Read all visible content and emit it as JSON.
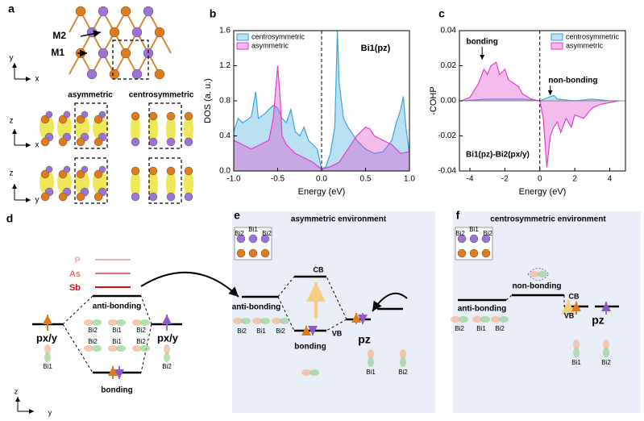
{
  "panels": {
    "a": {
      "letter": "a",
      "texts": [
        "M2",
        "M1",
        "y",
        "x",
        "asymmetric",
        "centrosymmetric",
        "z",
        "x",
        "z",
        "y"
      ]
    },
    "d": {
      "letter": "d",
      "texts": [
        "P",
        "As",
        "Sb",
        "anti-bonding",
        "px/y",
        "px/y",
        "Bi2",
        "Bi1",
        "Bi2",
        "Bi2",
        "Bi1",
        "Bi2",
        "bonding",
        "Bi1",
        "Bi2",
        "z",
        "y"
      ]
    },
    "e": {
      "letter": "e",
      "title": "asymmetric environment",
      "texts": [
        "Bi2",
        "Bi1",
        "Bi2",
        "CB",
        "VB",
        "anti-bonding",
        "bonding",
        "pz",
        "Bi2",
        "Bi1",
        "Bi2",
        "Bi1",
        "Bi2"
      ]
    },
    "f": {
      "letter": "f",
      "title": "centrosymmetric environment",
      "texts": [
        "Bi2",
        "Bi1",
        "Bi2",
        "non-bonding",
        "CB",
        "VB",
        "anti-bonding",
        "pz",
        "Bi2",
        "Bi1",
        "Bi2",
        "Bi1",
        "Bi2"
      ]
    }
  },
  "chart_data": [
    {
      "type": "area",
      "letter": "b",
      "annotations": [
        "Bi1(pz)"
      ],
      "xlabel": "Energy (eV)",
      "ylabel": "DOS (a. u.)",
      "xlim": [
        -1,
        1
      ],
      "ylim": [
        0,
        1.6
      ],
      "xticks": [
        {
          "value": -1,
          "label": "-1.0"
        },
        -0.5,
        {
          "value": 0,
          "label": "0.0"
        },
        0.5,
        {
          "value": 1,
          "label": "1.0"
        }
      ],
      "yticks": [
        {
          "value": 0,
          "label": "0.0"
        },
        0.4,
        0.8,
        1.2,
        1.6
      ],
      "vline": 0,
      "legend": "upper left",
      "series": [
        {
          "name": "centrosymmetric",
          "color": "#3aa6dd",
          "x": [
            -1,
            -0.95,
            -0.9,
            -0.85,
            -0.8,
            -0.75,
            -0.72,
            -0.65,
            -0.6,
            -0.55,
            -0.5,
            -0.45,
            -0.4,
            -0.35,
            -0.3,
            -0.25,
            -0.2,
            -0.15,
            -0.1,
            -0.05,
            0,
            0.05,
            0.1,
            0.15,
            0.18,
            0.2,
            0.25,
            0.3,
            0.4,
            0.5,
            0.6,
            0.7,
            0.8,
            0.85,
            0.9,
            0.93,
            0.96,
            1
          ],
          "values": [
            0.45,
            0.6,
            0.55,
            0.58,
            0.62,
            0.9,
            0.6,
            0.65,
            0.7,
            0.75,
            0.72,
            0.6,
            0.55,
            0.7,
            0.45,
            0.4,
            0.5,
            0.35,
            0.3,
            0.25,
            0.02,
            0.05,
            0.2,
            0.5,
            1.6,
            1.0,
            0.6,
            0.5,
            0.35,
            0.25,
            0.2,
            0.22,
            0.35,
            0.55,
            0.7,
            0.85,
            0.5,
            0.2
          ]
        },
        {
          "name": "asymmetric",
          "color": "#e040c8",
          "x": [
            -1,
            -0.9,
            -0.8,
            -0.7,
            -0.6,
            -0.55,
            -0.5,
            -0.47,
            -0.45,
            -0.4,
            -0.3,
            -0.2,
            -0.1,
            0,
            0.1,
            0.2,
            0.3,
            0.4,
            0.5,
            0.55,
            0.6,
            0.7,
            0.8,
            0.9,
            1
          ],
          "values": [
            0.35,
            0.3,
            0.25,
            0.3,
            0.35,
            0.6,
            1.2,
            0.8,
            0.4,
            0.3,
            0.2,
            0.15,
            0.1,
            0.02,
            0.05,
            0.1,
            0.25,
            0.4,
            0.5,
            0.48,
            0.4,
            0.35,
            0.3,
            0.2,
            0.22
          ]
        }
      ]
    },
    {
      "type": "area",
      "letter": "c",
      "annotations": [
        "bonding",
        "non-bonding",
        "Bi1(pz)-Bi2(px/y)"
      ],
      "xlabel": "Energy (eV)",
      "ylabel": "-COHP",
      "xlim": [
        -4.6,
        4.9
      ],
      "ylim": [
        -0.04,
        0.04
      ],
      "xticks": [
        -4,
        -2,
        0,
        2,
        4
      ],
      "yticks": [
        -0.04,
        -0.02,
        {
          "value": 0,
          "label": "0.00"
        },
        0.02,
        0.04
      ],
      "vline": 0,
      "hline": 0,
      "legend": "upper right",
      "series": [
        {
          "name": "centrosymmetric",
          "color": "#3aa6dd",
          "x": [
            -4.5,
            -3,
            -2,
            -1,
            0,
            0.5,
            0.8,
            1,
            2,
            3,
            4,
            4.5
          ],
          "values": [
            0,
            0.001,
            0.001,
            0.001,
            0,
            0.002,
            0.003,
            0.001,
            0,
            0.001,
            0,
            0
          ]
        },
        {
          "name": "asymmetric",
          "color": "#e040c8",
          "x": [
            -4.5,
            -4,
            -3.5,
            -3.2,
            -3,
            -2.8,
            -2.5,
            -2.3,
            -2,
            -1.8,
            -1.5,
            -1.2,
            -1,
            -0.5,
            0,
            0.2,
            0.4,
            0.6,
            0.8,
            1,
            1.2,
            1.5,
            1.8,
            2,
            2.5,
            3,
            3.5,
            4,
            4.5
          ],
          "values": [
            0,
            0.002,
            0.01,
            0.018,
            0.015,
            0.02,
            0.022,
            0.015,
            0.018,
            0.012,
            0.01,
            0.008,
            0.004,
            0.001,
            0,
            -0.01,
            -0.038,
            -0.02,
            -0.015,
            -0.012,
            -0.018,
            -0.01,
            -0.015,
            -0.008,
            -0.01,
            -0.004,
            -0.002,
            -0.001,
            0
          ]
        }
      ]
    }
  ]
}
